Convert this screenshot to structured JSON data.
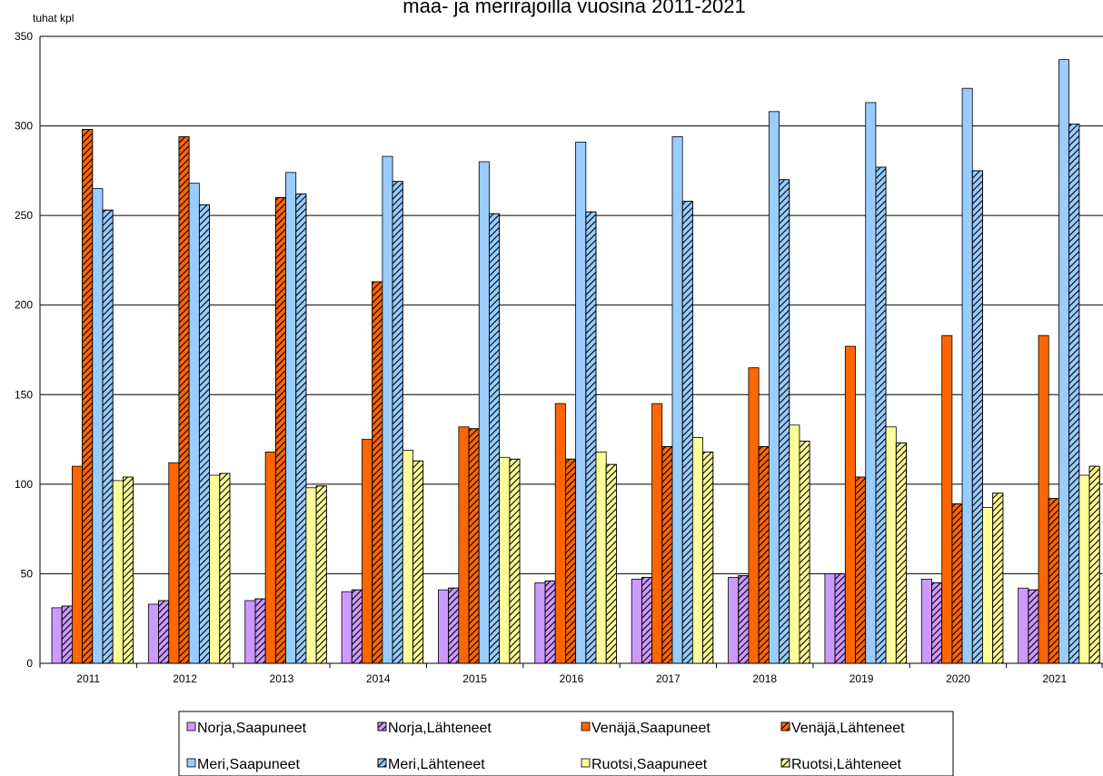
{
  "chart_data": {
    "type": "bar",
    "title": "maa- ja merirajoilla vuosina 2011-2021",
    "ylabel": "tuhat kpl",
    "xlabel": "",
    "ylim": [
      0,
      350
    ],
    "yticks": [
      0,
      50,
      100,
      150,
      200,
      250,
      300,
      350
    ],
    "grid": true,
    "legend_position": "bottom",
    "categories": [
      "2011",
      "2012",
      "2013",
      "2014",
      "2015",
      "2016",
      "2017",
      "2018",
      "2019",
      "2020",
      "2021"
    ],
    "series": [
      {
        "name": "Norja,Saapuneet",
        "color": "#cc99ff",
        "hatched": false,
        "values": [
          31,
          33,
          35,
          40,
          41,
          45,
          47,
          48,
          50,
          47,
          42
        ]
      },
      {
        "name": "Norja,Lähteneet",
        "color": "#cc99ff",
        "hatched": true,
        "values": [
          32,
          35,
          36,
          41,
          42,
          46,
          48,
          49,
          50,
          45,
          41
        ]
      },
      {
        "name": "Venäjä,Saapuneet",
        "color": "#ff6600",
        "hatched": false,
        "values": [
          110,
          112,
          118,
          125,
          132,
          145,
          145,
          165,
          177,
          183,
          183
        ]
      },
      {
        "name": "Venäjä,Lähteneet",
        "color": "#ff6600",
        "hatched": true,
        "values": [
          298,
          294,
          260,
          213,
          131,
          114,
          121,
          121,
          104,
          89,
          92
        ]
      },
      {
        "name": "Meri,Saapuneet",
        "color": "#99ccff",
        "hatched": false,
        "values": [
          265,
          268,
          274,
          283,
          280,
          291,
          294,
          308,
          313,
          321,
          337
        ]
      },
      {
        "name": "Meri,Lähteneet",
        "color": "#99ccff",
        "hatched": true,
        "values": [
          253,
          256,
          262,
          269,
          251,
          252,
          258,
          270,
          277,
          275,
          301
        ]
      },
      {
        "name": "Ruotsi,Saapuneet",
        "color": "#ffff99",
        "hatched": false,
        "values": [
          102,
          105,
          98,
          119,
          115,
          118,
          126,
          133,
          132,
          87,
          105
        ]
      },
      {
        "name": "Ruotsi,Lähteneet",
        "color": "#ffff99",
        "hatched": true,
        "values": [
          104,
          106,
          99,
          113,
          114,
          111,
          118,
          124,
          123,
          95,
          110
        ]
      }
    ]
  }
}
